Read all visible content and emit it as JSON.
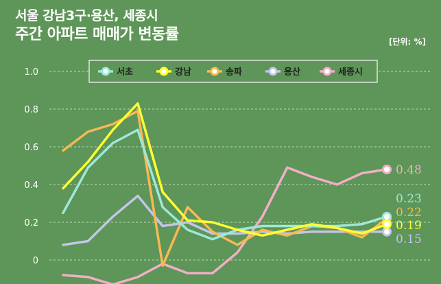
{
  "header": {
    "title_line1": "서울 강남3구·용산, 세종시",
    "title_line2": "주간 아파트 매매가 변동률",
    "unit": "[단위: %]"
  },
  "chart_data": {
    "type": "line",
    "title": "주간 아파트 매매가 변동률",
    "ylabel": "",
    "unit": "%",
    "ylim": [
      -0.1,
      1.05
    ],
    "yticks": [
      "1.0",
      "0.8",
      "0.6",
      "0.4",
      "0.2",
      "0"
    ],
    "grid": "horizontal dashed",
    "legend": "top",
    "points": 14,
    "series": [
      {
        "name": "서초",
        "color": "#9ee8d8",
        "values": [
          0.25,
          0.49,
          0.62,
          0.69,
          0.28,
          0.16,
          0.11,
          0.16,
          0.18,
          0.18,
          0.18,
          0.18,
          0.19,
          0.23
        ],
        "end_label": "0.23"
      },
      {
        "name": "강남",
        "color": "#ffff33",
        "values": [
          0.38,
          0.52,
          0.69,
          0.83,
          0.36,
          0.21,
          0.2,
          0.16,
          0.13,
          0.16,
          0.19,
          0.17,
          0.14,
          0.19
        ],
        "end_label": "0.19"
      },
      {
        "name": "송파",
        "color": "#f7b955",
        "values": [
          0.58,
          0.68,
          0.72,
          0.79,
          -0.03,
          0.28,
          0.15,
          0.08,
          0.16,
          0.13,
          0.18,
          0.17,
          0.12,
          0.22
        ],
        "end_label": "0.22"
      },
      {
        "name": "용산",
        "color": "#c4c4ec",
        "values": [
          0.08,
          0.1,
          0.23,
          0.34,
          0.18,
          0.2,
          0.14,
          0.14,
          0.15,
          0.14,
          0.15,
          0.15,
          0.15,
          0.15
        ],
        "end_label": "0.15"
      },
      {
        "name": "세종시",
        "color": "#f2afc7",
        "values": [
          -0.08,
          -0.09,
          -0.13,
          -0.09,
          -0.02,
          -0.07,
          -0.07,
          0.04,
          0.23,
          0.49,
          0.44,
          0.4,
          0.46,
          0.48
        ],
        "end_label": "0.48"
      }
    ]
  }
}
